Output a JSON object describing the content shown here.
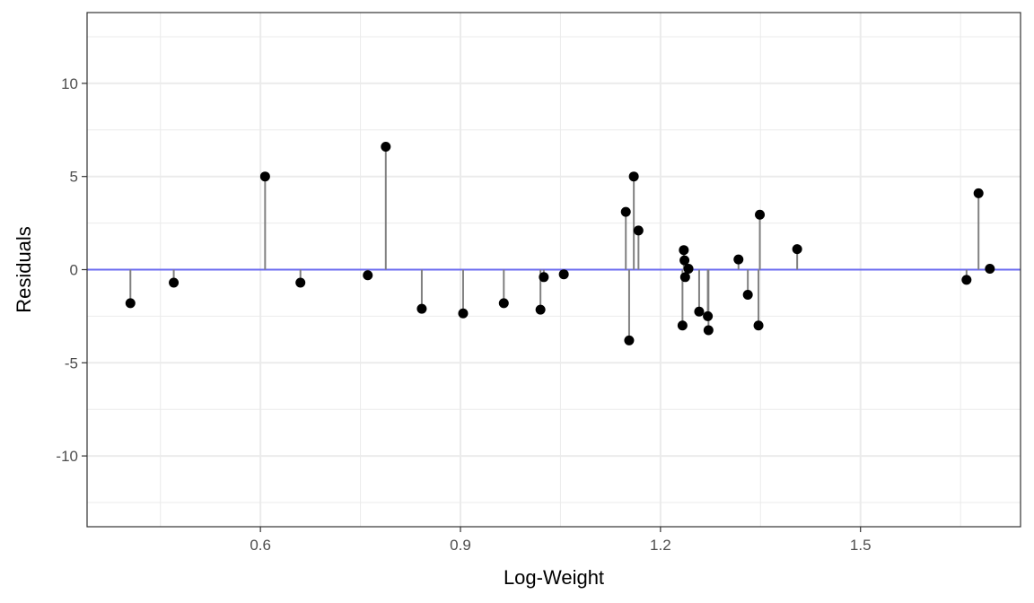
{
  "chart_data": {
    "type": "scatter",
    "subtype": "residual-lollipop",
    "xlabel": "Log-Weight",
    "ylabel": "Residuals",
    "xlim": [
      0.34,
      1.74
    ],
    "ylim": [
      -13.8,
      13.8
    ],
    "x_ticks": [
      0.6,
      0.9,
      1.2,
      1.5
    ],
    "x_tick_labels": [
      "0.6",
      "0.9",
      "1.2",
      "1.5"
    ],
    "y_ticks": [
      -10,
      -5,
      0,
      5,
      10
    ],
    "y_tick_labels": [
      "-10",
      "-5",
      "0",
      "5",
      "10"
    ],
    "grid": true,
    "reference_line": {
      "y": 0,
      "color": "#6b6bf0"
    },
    "colors": {
      "points": "#000000",
      "segments": "#808080",
      "panel_border": "#333333",
      "grid": "#ebebeb"
    },
    "points": [
      {
        "x": 0.405,
        "y": -1.8
      },
      {
        "x": 0.47,
        "y": -0.7
      },
      {
        "x": 0.607,
        "y": 5.0
      },
      {
        "x": 0.66,
        "y": -0.7
      },
      {
        "x": 0.761,
        "y": -0.3
      },
      {
        "x": 0.788,
        "y": 6.6
      },
      {
        "x": 0.842,
        "y": -2.1
      },
      {
        "x": 0.904,
        "y": -2.35
      },
      {
        "x": 0.965,
        "y": -1.8
      },
      {
        "x": 1.02,
        "y": -2.15
      },
      {
        "x": 1.025,
        "y": -0.4
      },
      {
        "x": 1.055,
        "y": -0.25
      },
      {
        "x": 1.148,
        "y": 3.1
      },
      {
        "x": 1.153,
        "y": -3.8
      },
      {
        "x": 1.16,
        "y": 5.0
      },
      {
        "x": 1.167,
        "y": 2.1
      },
      {
        "x": 1.233,
        "y": -3.0
      },
      {
        "x": 1.235,
        "y": 1.05
      },
      {
        "x": 1.236,
        "y": 0.5
      },
      {
        "x": 1.237,
        "y": -0.4
      },
      {
        "x": 1.242,
        "y": 0.05
      },
      {
        "x": 1.258,
        "y": -2.25
      },
      {
        "x": 1.271,
        "y": -2.5
      },
      {
        "x": 1.272,
        "y": -3.25
      },
      {
        "x": 1.317,
        "y": 0.55
      },
      {
        "x": 1.331,
        "y": -1.35
      },
      {
        "x": 1.347,
        "y": -3.0
      },
      {
        "x": 1.349,
        "y": 2.95
      },
      {
        "x": 1.405,
        "y": 1.1
      },
      {
        "x": 1.659,
        "y": -0.55
      },
      {
        "x": 1.677,
        "y": 4.1
      },
      {
        "x": 1.694,
        "y": 0.05
      }
    ]
  }
}
